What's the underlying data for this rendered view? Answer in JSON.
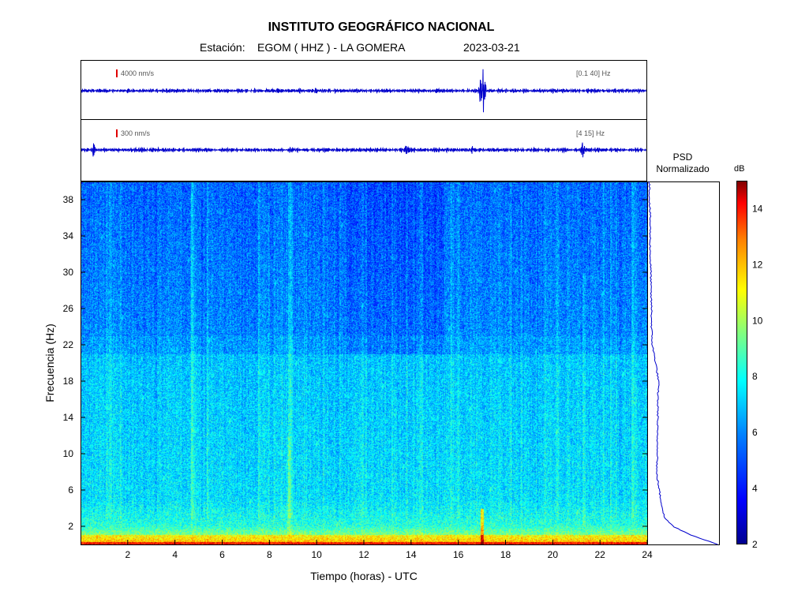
{
  "header": {
    "title": "INSTITUTO GEOGRÁFICO NACIONAL",
    "station_label": "Estación:",
    "station_value": "EGOM ( HHZ ) - LA GOMERA",
    "date": "2023-03-21"
  },
  "traces": [
    {
      "amplitude_label": "4000 nm/s",
      "band_label": "[0.1 40] Hz",
      "color": "#0000cc"
    },
    {
      "amplitude_label": "300 nm/s",
      "band_label": "[4 15] Hz",
      "color": "#0000cc"
    }
  ],
  "psd": {
    "title": "PSD",
    "subtitle": "Normalizado"
  },
  "colorbar": {
    "unit": "dB",
    "min": 2,
    "max": 15,
    "ticks": [
      2,
      4,
      6,
      8,
      10,
      12,
      14
    ]
  },
  "chart_data": {
    "type": "heatmap",
    "xlabel": "Tiempo (horas) - UTC",
    "ylabel": "Frecuencia (Hz)",
    "xlim": [
      0,
      24
    ],
    "ylim": [
      0,
      40
    ],
    "xticks": [
      2,
      4,
      6,
      8,
      10,
      12,
      14,
      16,
      18,
      20,
      22,
      24
    ],
    "yticks": [
      2,
      6,
      10,
      14,
      18,
      22,
      26,
      30,
      34,
      38
    ],
    "events_hours": [
      0.5,
      17.0,
      21.3
    ],
    "psd_profile": {
      "freq_hz": [
        0,
        1,
        2,
        3,
        4,
        5,
        6,
        8,
        10,
        12,
        14,
        16,
        18,
        20,
        22,
        24,
        26,
        28,
        30,
        32,
        34,
        36,
        38,
        40
      ],
      "normalized_db": [
        1.0,
        0.62,
        0.35,
        0.22,
        0.2,
        0.17,
        0.15,
        0.11,
        0.13,
        0.12,
        0.13,
        0.13,
        0.14,
        0.1,
        0.05,
        0.04,
        0.04,
        0.03,
        0.03,
        0.02,
        0.02,
        0.02,
        0.01,
        0.01
      ]
    }
  }
}
